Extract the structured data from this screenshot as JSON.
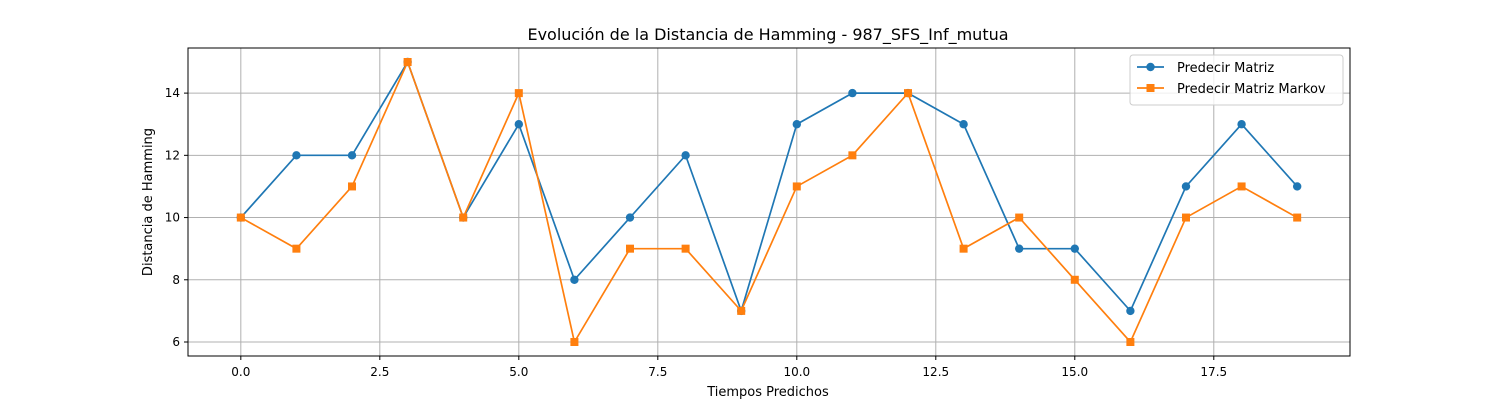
{
  "chart_data": {
    "type": "line",
    "title": "Evolución de la Distancia de Hamming - 987_SFS_Inf_mutua",
    "xlabel": "Tiempos Predichos",
    "ylabel": "Distancia de Hamming",
    "x": [
      0,
      1,
      2,
      3,
      4,
      5,
      6,
      7,
      8,
      9,
      10,
      11,
      12,
      13,
      14,
      15,
      16,
      17,
      18,
      19
    ],
    "xlim": [
      -0.95,
      19.95
    ],
    "ylim": [
      5.55,
      15.45
    ],
    "xticks": [
      0.0,
      2.5,
      5.0,
      7.5,
      10.0,
      12.5,
      15.0,
      17.5
    ],
    "xtick_labels": [
      "0.0",
      "2.5",
      "5.0",
      "7.5",
      "10.0",
      "12.5",
      "15.0",
      "17.5"
    ],
    "yticks": [
      6,
      8,
      10,
      12,
      14
    ],
    "ytick_labels": [
      "6",
      "8",
      "10",
      "12",
      "14"
    ],
    "grid": true,
    "legend_position": "top-right",
    "series": [
      {
        "name": "Predecir Matriz",
        "color": "#1f77b4",
        "marker": "circle",
        "values": [
          10,
          12,
          12,
          15,
          10,
          13,
          8,
          10,
          12,
          7,
          13,
          14,
          14,
          13,
          9,
          9,
          7,
          11,
          13,
          11
        ]
      },
      {
        "name": "Predecir Matriz Markov",
        "color": "#ff7f0e",
        "marker": "square",
        "values": [
          10,
          9,
          11,
          15,
          10,
          14,
          6,
          9,
          9,
          7,
          11,
          12,
          14,
          9,
          10,
          8,
          6,
          10,
          11,
          10
        ]
      }
    ]
  }
}
